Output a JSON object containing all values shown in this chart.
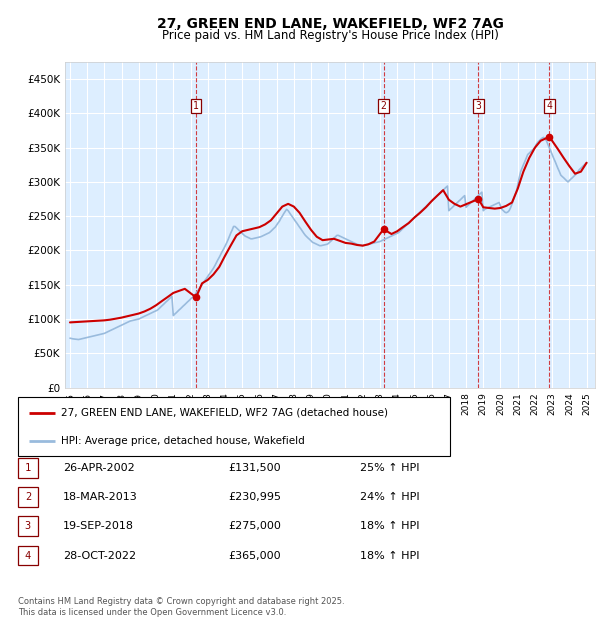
{
  "title": "27, GREEN END LANE, WAKEFIELD, WF2 7AG",
  "subtitle": "Price paid vs. HM Land Registry's House Price Index (HPI)",
  "ylabel_ticks": [
    "£0",
    "£50K",
    "£100K",
    "£150K",
    "£200K",
    "£250K",
    "£300K",
    "£350K",
    "£400K",
    "£450K"
  ],
  "ytick_values": [
    0,
    50000,
    100000,
    150000,
    200000,
    250000,
    300000,
    350000,
    400000,
    450000
  ],
  "ylim": [
    0,
    475000
  ],
  "xlim_start": 1994.7,
  "xlim_end": 2025.5,
  "background_color": "#ddeeff",
  "grid_color": "#ffffff",
  "sale_color": "#cc0000",
  "hpi_color": "#99bbdd",
  "legend_entries": [
    "27, GREEN END LANE, WAKEFIELD, WF2 7AG (detached house)",
    "HPI: Average price, detached house, Wakefield"
  ],
  "transactions": [
    {
      "num": 1,
      "date": "26-APR-2002",
      "price": 131500,
      "pct": "25%",
      "x": 2002.32
    },
    {
      "num": 2,
      "date": "18-MAR-2013",
      "price": 230995,
      "pct": "24%",
      "x": 2013.21
    },
    {
      "num": 3,
      "date": "19-SEP-2018",
      "price": 275000,
      "pct": "18%",
      "x": 2018.72
    },
    {
      "num": 4,
      "date": "28-OCT-2022",
      "price": 365000,
      "pct": "18%",
      "x": 2022.83
    }
  ],
  "footer": "Contains HM Land Registry data © Crown copyright and database right 2025.\nThis data is licensed under the Open Government Licence v3.0.",
  "hpi_data_x": [
    1995.0,
    1995.08,
    1995.17,
    1995.25,
    1995.33,
    1995.42,
    1995.5,
    1995.58,
    1995.67,
    1995.75,
    1995.83,
    1995.92,
    1996.0,
    1996.08,
    1996.17,
    1996.25,
    1996.33,
    1996.42,
    1996.5,
    1996.58,
    1996.67,
    1996.75,
    1996.83,
    1996.92,
    1997.0,
    1997.08,
    1997.17,
    1997.25,
    1997.33,
    1997.42,
    1997.5,
    1997.58,
    1997.67,
    1997.75,
    1997.83,
    1997.92,
    1998.0,
    1998.08,
    1998.17,
    1998.25,
    1998.33,
    1998.42,
    1998.5,
    1998.58,
    1998.67,
    1998.75,
    1998.83,
    1998.92,
    1999.0,
    1999.08,
    1999.17,
    1999.25,
    1999.33,
    1999.42,
    1999.5,
    1999.58,
    1999.67,
    1999.75,
    1999.83,
    1999.92,
    2000.0,
    2000.08,
    2000.17,
    2000.25,
    2000.33,
    2000.42,
    2000.5,
    2000.58,
    2000.67,
    2000.75,
    2000.83,
    2000.92,
    2001.0,
    2001.08,
    2001.17,
    2001.25,
    2001.33,
    2001.42,
    2001.5,
    2001.58,
    2001.67,
    2001.75,
    2001.83,
    2001.92,
    2002.0,
    2002.08,
    2002.17,
    2002.25,
    2002.33,
    2002.42,
    2002.5,
    2002.58,
    2002.67,
    2002.75,
    2002.83,
    2002.92,
    2003.0,
    2003.08,
    2003.17,
    2003.25,
    2003.33,
    2003.42,
    2003.5,
    2003.58,
    2003.67,
    2003.75,
    2003.83,
    2003.92,
    2004.0,
    2004.08,
    2004.17,
    2004.25,
    2004.33,
    2004.42,
    2004.5,
    2004.58,
    2004.67,
    2004.75,
    2004.83,
    2004.92,
    2005.0,
    2005.08,
    2005.17,
    2005.25,
    2005.33,
    2005.42,
    2005.5,
    2005.58,
    2005.67,
    2005.75,
    2005.83,
    2005.92,
    2006.0,
    2006.08,
    2006.17,
    2006.25,
    2006.33,
    2006.42,
    2006.5,
    2006.58,
    2006.67,
    2006.75,
    2006.83,
    2006.92,
    2007.0,
    2007.08,
    2007.17,
    2007.25,
    2007.33,
    2007.42,
    2007.5,
    2007.58,
    2007.67,
    2007.75,
    2007.83,
    2007.92,
    2008.0,
    2008.08,
    2008.17,
    2008.25,
    2008.33,
    2008.42,
    2008.5,
    2008.58,
    2008.67,
    2008.75,
    2008.83,
    2008.92,
    2009.0,
    2009.08,
    2009.17,
    2009.25,
    2009.33,
    2009.42,
    2009.5,
    2009.58,
    2009.67,
    2009.75,
    2009.83,
    2009.92,
    2010.0,
    2010.08,
    2010.17,
    2010.25,
    2010.33,
    2010.42,
    2010.5,
    2010.58,
    2010.67,
    2010.75,
    2010.83,
    2010.92,
    2011.0,
    2011.08,
    2011.17,
    2011.25,
    2011.33,
    2011.42,
    2011.5,
    2011.58,
    2011.67,
    2011.75,
    2011.83,
    2011.92,
    2012.0,
    2012.08,
    2012.17,
    2012.25,
    2012.33,
    2012.42,
    2012.5,
    2012.58,
    2012.67,
    2012.75,
    2012.83,
    2012.92,
    2013.0,
    2013.08,
    2013.17,
    2013.25,
    2013.33,
    2013.42,
    2013.5,
    2013.58,
    2013.67,
    2013.75,
    2013.83,
    2013.92,
    2014.0,
    2014.08,
    2014.17,
    2014.25,
    2014.33,
    2014.42,
    2014.5,
    2014.58,
    2014.67,
    2014.75,
    2014.83,
    2014.92,
    2015.0,
    2015.08,
    2015.17,
    2015.25,
    2015.33,
    2015.42,
    2015.5,
    2015.58,
    2015.67,
    2015.75,
    2015.83,
    2015.92,
    2016.0,
    2016.08,
    2016.17,
    2016.25,
    2016.33,
    2016.42,
    2016.5,
    2016.58,
    2016.67,
    2016.75,
    2016.83,
    2016.92,
    2017.0,
    2017.08,
    2017.17,
    2017.25,
    2017.33,
    2017.42,
    2017.5,
    2017.58,
    2017.67,
    2017.75,
    2017.83,
    2017.92,
    2018.0,
    2018.08,
    2018.17,
    2018.25,
    2018.33,
    2018.42,
    2018.5,
    2018.58,
    2018.67,
    2018.75,
    2018.83,
    2018.92,
    2019.0,
    2019.08,
    2019.17,
    2019.25,
    2019.33,
    2019.42,
    2019.5,
    2019.58,
    2019.67,
    2019.75,
    2019.83,
    2019.92,
    2020.0,
    2020.08,
    2020.17,
    2020.25,
    2020.33,
    2020.42,
    2020.5,
    2020.58,
    2020.67,
    2020.75,
    2020.83,
    2020.92,
    2021.0,
    2021.08,
    2021.17,
    2021.25,
    2021.33,
    2021.42,
    2021.5,
    2021.58,
    2021.67,
    2021.75,
    2021.83,
    2021.92,
    2022.0,
    2022.08,
    2022.17,
    2022.25,
    2022.33,
    2022.42,
    2022.5,
    2022.58,
    2022.67,
    2022.75,
    2022.83,
    2022.92,
    2023.0,
    2023.08,
    2023.17,
    2023.25,
    2023.33,
    2023.42,
    2023.5,
    2023.58,
    2023.67,
    2023.75,
    2023.83,
    2023.92,
    2024.0,
    2024.08,
    2024.17,
    2024.25,
    2024.33,
    2024.42,
    2024.5,
    2024.58,
    2024.67,
    2024.75,
    2024.83,
    2024.92,
    2025.0
  ],
  "hpi_data_y": [
    72000,
    71500,
    71000,
    70800,
    70500,
    70200,
    70000,
    70500,
    71000,
    71500,
    72000,
    72500,
    73000,
    73500,
    74000,
    74500,
    75000,
    75500,
    76000,
    76500,
    77000,
    77500,
    78000,
    78500,
    79000,
    80000,
    81000,
    82000,
    83000,
    84000,
    85000,
    86000,
    87000,
    88000,
    89000,
    90000,
    91000,
    92000,
    93000,
    94000,
    95000,
    96000,
    97000,
    97500,
    98000,
    98500,
    99000,
    99500,
    100000,
    101000,
    102000,
    103000,
    104000,
    105000,
    106000,
    107000,
    108000,
    109000,
    110000,
    111000,
    112000,
    113000,
    115000,
    117000,
    119000,
    121000,
    123000,
    125000,
    127000,
    129000,
    131000,
    133000,
    105000,
    107000,
    109000,
    111000,
    113000,
    115000,
    117000,
    119000,
    121000,
    123000,
    125000,
    127000,
    129000,
    131000,
    133000,
    135000,
    138000,
    141000,
    144000,
    147000,
    150000,
    153000,
    156000,
    159000,
    162000,
    165000,
    168000,
    171000,
    174000,
    178000,
    182000,
    186000,
    190000,
    194000,
    198000,
    202000,
    206000,
    210000,
    215000,
    220000,
    225000,
    230000,
    235000,
    235000,
    233000,
    231000,
    229000,
    227000,
    225000,
    223000,
    221000,
    220000,
    219000,
    218000,
    217000,
    217000,
    217500,
    218000,
    218500,
    219000,
    219500,
    220000,
    221000,
    222000,
    223000,
    224000,
    225000,
    226000,
    228000,
    230000,
    232000,
    234000,
    237000,
    240000,
    243000,
    247000,
    250000,
    254000,
    257000,
    260000,
    258000,
    255000,
    252000,
    249000,
    246000,
    243000,
    240000,
    237000,
    234000,
    231000,
    228000,
    225000,
    222000,
    220000,
    218000,
    216000,
    214000,
    212000,
    211000,
    210000,
    209000,
    208000,
    207000,
    207000,
    207500,
    208000,
    208500,
    209000,
    210000,
    212000,
    214000,
    216000,
    218000,
    220000,
    222000,
    222000,
    221000,
    220000,
    219000,
    218000,
    217000,
    216000,
    215000,
    214000,
    213000,
    212000,
    211000,
    210000,
    209000,
    208500,
    208000,
    207500,
    207000,
    207500,
    208000,
    208500,
    209000,
    209500,
    210000,
    210500,
    211000,
    211500,
    212000,
    212500,
    213000,
    214000,
    215000,
    216000,
    217000,
    218000,
    219000,
    220000,
    221000,
    222000,
    223000,
    224000,
    225000,
    226000,
    228000,
    230000,
    232000,
    234000,
    236000,
    238000,
    240000,
    242000,
    244000,
    246000,
    248000,
    250000,
    252000,
    254000,
    256000,
    258000,
    260000,
    262000,
    264000,
    266000,
    268000,
    270000,
    272000,
    274000,
    276000,
    278000,
    280000,
    282000,
    284000,
    286000,
    288000,
    290000,
    292000,
    294000,
    258000,
    260000,
    262000,
    264000,
    266000,
    268000,
    270000,
    272000,
    274000,
    276000,
    278000,
    280000,
    263000,
    265000,
    267000,
    269000,
    271000,
    273000,
    275000,
    277000,
    279000,
    281000,
    283000,
    285000,
    258000,
    260000,
    261000,
    262000,
    263000,
    264000,
    265000,
    266000,
    267000,
    268000,
    269000,
    270000,
    265000,
    260000,
    258000,
    256000,
    255000,
    256000,
    258000,
    262000,
    268000,
    274000,
    280000,
    286000,
    295000,
    305000,
    315000,
    320000,
    325000,
    330000,
    335000,
    340000,
    342000,
    344000,
    346000,
    348000,
    350000,
    355000,
    358000,
    360000,
    362000,
    364000,
    365000,
    363000,
    360000,
    355000,
    350000,
    345000,
    340000,
    335000,
    330000,
    325000,
    320000,
    315000,
    310000,
    308000,
    306000,
    304000,
    302000,
    300000,
    302000,
    304000,
    306000,
    308000,
    310000,
    312000,
    315000,
    318000,
    320000,
    322000,
    324000,
    326000,
    328000
  ],
  "sale_x": [
    1995.0,
    1995.33,
    1995.67,
    1996.0,
    1996.33,
    1996.67,
    1997.0,
    1997.33,
    1997.67,
    1998.0,
    1998.33,
    1998.67,
    1999.0,
    1999.33,
    1999.67,
    2000.0,
    2000.33,
    2000.67,
    2001.0,
    2001.33,
    2001.67,
    2002.32,
    2002.67,
    2003.0,
    2003.33,
    2003.67,
    2004.0,
    2004.33,
    2004.67,
    2005.0,
    2005.33,
    2005.67,
    2006.0,
    2006.33,
    2006.67,
    2007.0,
    2007.33,
    2007.67,
    2008.0,
    2008.33,
    2008.67,
    2009.0,
    2009.33,
    2009.67,
    2010.0,
    2010.33,
    2010.67,
    2011.0,
    2011.33,
    2011.67,
    2012.0,
    2012.33,
    2012.67,
    2013.21,
    2013.67,
    2014.0,
    2014.33,
    2014.67,
    2015.0,
    2015.33,
    2015.67,
    2016.0,
    2016.33,
    2016.67,
    2017.0,
    2017.33,
    2017.67,
    2018.72,
    2019.0,
    2019.33,
    2019.67,
    2020.0,
    2020.33,
    2020.67,
    2021.0,
    2021.33,
    2021.67,
    2022.0,
    2022.33,
    2022.67,
    2022.83,
    2023.0,
    2023.33,
    2023.67,
    2024.0,
    2024.33,
    2024.67,
    2025.0
  ],
  "sale_y": [
    95000,
    95500,
    96000,
    96500,
    97000,
    97500,
    98000,
    99000,
    100500,
    102000,
    104000,
    106000,
    108000,
    111000,
    115000,
    120000,
    126000,
    132000,
    138000,
    141000,
    144000,
    131500,
    152000,
    157000,
    165000,
    176000,
    192000,
    207000,
    222000,
    228000,
    230000,
    232000,
    234000,
    238000,
    244000,
    254000,
    264000,
    268000,
    264000,
    255000,
    242000,
    230000,
    220000,
    215000,
    216000,
    217000,
    214000,
    211000,
    210000,
    208000,
    207000,
    209000,
    213000,
    230995,
    224000,
    228000,
    234000,
    240000,
    248000,
    255000,
    263000,
    272000,
    280000,
    288000,
    274000,
    268000,
    264000,
    275000,
    263000,
    262000,
    261000,
    262000,
    265000,
    270000,
    290000,
    315000,
    335000,
    350000,
    360000,
    364000,
    365000,
    360000,
    348000,
    335000,
    323000,
    312000,
    315000,
    328000
  ]
}
